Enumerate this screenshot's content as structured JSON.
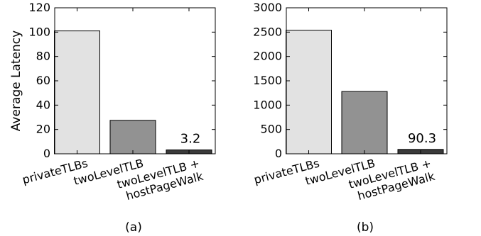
{
  "chart_data": [
    {
      "type": "bar",
      "panel_label": "(a)",
      "ylabel": "Average Latency",
      "ylim": [
        0,
        120
      ],
      "yticks": [
        "0",
        "20",
        "40",
        "60",
        "80",
        "100",
        "120"
      ],
      "categories": [
        "privateTLBs",
        "twoLevelTLB",
        "twoLevelTLB +\nhostPageWalk"
      ],
      "values": [
        101,
        27.5,
        3.2
      ],
      "bar_colors": [
        "#e2e2e2",
        "#929292",
        "#3a3a3a"
      ],
      "annotations": [
        {
          "category_index": 2,
          "text": "3.2"
        }
      ],
      "grid": false
    },
    {
      "type": "bar",
      "panel_label": "(b)",
      "ylabel": "",
      "ylim": [
        0,
        3000
      ],
      "yticks": [
        "0",
        "500",
        "1000",
        "1500",
        "2000",
        "2500",
        "3000"
      ],
      "categories": [
        "privateTLBs",
        "twoLevelTLB",
        "twoLevelTLB +\nhostPageWalk"
      ],
      "values": [
        2540,
        1280,
        90.3
      ],
      "bar_colors": [
        "#e2e2e2",
        "#929292",
        "#3a3a3a"
      ],
      "annotations": [
        {
          "category_index": 2,
          "text": "90.3"
        }
      ],
      "grid": false
    }
  ]
}
